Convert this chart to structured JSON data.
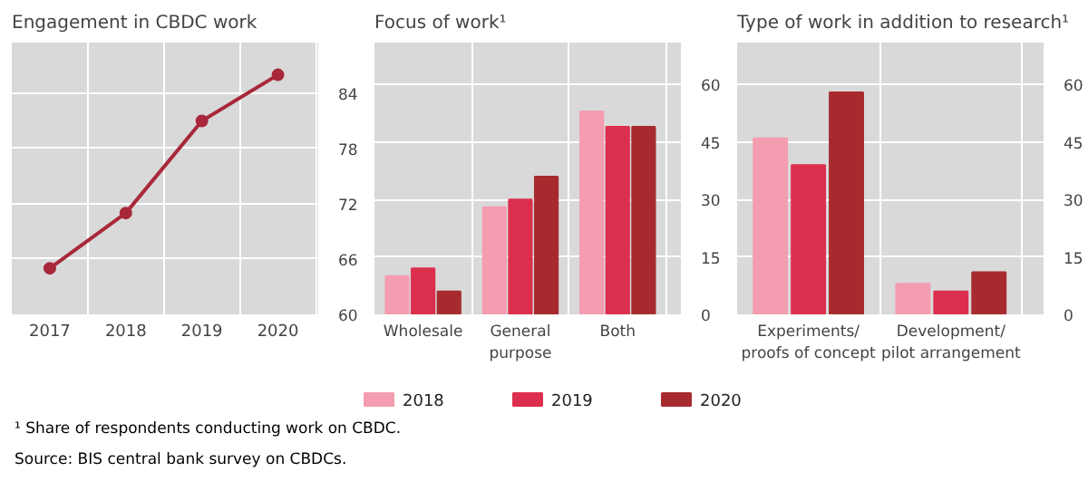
{
  "chart_data": [
    {
      "type": "line",
      "title": "Engagement in CBDC work",
      "x": [
        2017,
        2018,
        2019,
        2020
      ],
      "xlim": [
        2016.5,
        2020.53
      ],
      "xticks": [
        2017,
        2018,
        2019,
        2020
      ],
      "series": [
        {
          "color": "#a8283a",
          "values": [
            65,
            71,
            81,
            86
          ]
        }
      ],
      "ylim": [
        60,
        89.5
      ],
      "yticks": [
        60,
        66,
        72,
        78,
        84
      ],
      "grid": true,
      "marker": "circle",
      "line_style": "solid",
      "annotations": [
        "¹  Share of respondents conducting work on CBDC.",
        "Source: BIS central bank survey on CBDCs."
      ]
    },
    {
      "type": "bar",
      "title": "Focus of work¹",
      "categories": [
        "Wholesale",
        "General\npurpose",
        "Both"
      ],
      "series": [
        {
          "name": "2018",
          "color": "#f49cb0",
          "values": [
            10,
            28,
            53
          ]
        },
        {
          "name": "2019",
          "color": "#dc2f4e",
          "values": [
            12,
            30,
            49
          ]
        },
        {
          "name": "2020",
          "color": "#a72b2e",
          "values": [
            6,
            36,
            49
          ]
        }
      ],
      "ylim": [
        0,
        71
      ],
      "yticks": [
        0,
        15,
        30,
        45,
        60
      ],
      "grid": true,
      "legend": "bottom"
    },
    {
      "type": "bar",
      "title": "Type of work in addition to research¹",
      "categories": [
        "Experiments/\nproofs of concept",
        "Development/\npilot arrangement"
      ],
      "series": [
        {
          "color": "#f49cb0",
          "values": [
            46,
            8
          ]
        },
        {
          "color": "#dc2f4e",
          "values": [
            39,
            6
          ]
        },
        {
          "color": "#a72b2e",
          "values": [
            58,
            11
          ]
        }
      ],
      "ylim": [
        0,
        71
      ],
      "yticks": [
        0,
        15,
        30,
        45,
        60
      ],
      "grid": true
    }
  ]
}
